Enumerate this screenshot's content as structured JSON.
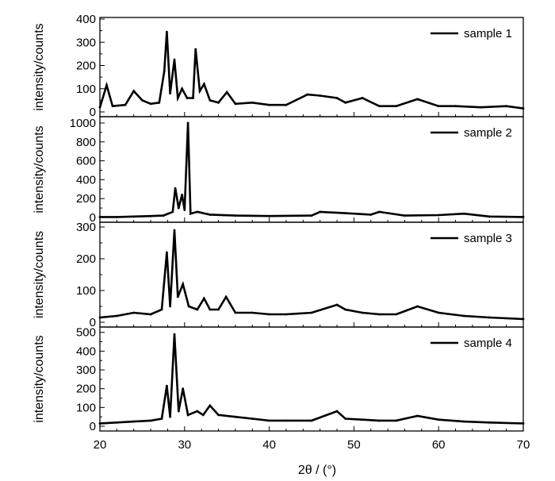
{
  "chart_data": [
    {
      "type": "line",
      "legend_position": "top-right",
      "ylabel": "intensity/counts",
      "xlim": [
        20,
        70
      ],
      "ylim": [
        0,
        400
      ],
      "yticks": [
        0,
        100,
        200,
        300,
        400
      ],
      "series": [
        {
          "name": "sample 1",
          "x": [
            20,
            20.8,
            21.5,
            23,
            24,
            25,
            26,
            27,
            27.6,
            27.9,
            28.3,
            28.8,
            29.2,
            29.7,
            30.3,
            31.0,
            31.3,
            31.8,
            32.3,
            33,
            34,
            35,
            36,
            38,
            40,
            42,
            44.5,
            46,
            48,
            49,
            51,
            53,
            55,
            57.5,
            60,
            62,
            65,
            68,
            70
          ],
          "y": [
            20,
            115,
            25,
            30,
            90,
            50,
            35,
            40,
            175,
            345,
            80,
            225,
            60,
            100,
            60,
            60,
            270,
            90,
            120,
            50,
            40,
            85,
            35,
            40,
            30,
            30,
            75,
            70,
            60,
            40,
            60,
            25,
            25,
            55,
            25,
            25,
            20,
            25,
            15
          ]
        }
      ]
    },
    {
      "type": "line",
      "legend_position": "top-right",
      "ylabel": "intensity/counts",
      "xlim": [
        20,
        70
      ],
      "ylim": [
        0,
        1050
      ],
      "yticks": [
        0,
        200,
        400,
        600,
        800,
        1000
      ],
      "series": [
        {
          "name": "sample 2",
          "x": [
            20,
            22,
            24,
            26,
            27.5,
            28.6,
            28.9,
            29.3,
            29.7,
            30.0,
            30.4,
            30.7,
            31.5,
            33,
            36,
            40,
            45,
            46,
            49,
            52,
            53,
            56,
            60,
            63,
            66,
            70
          ],
          "y": [
            5,
            5,
            10,
            15,
            20,
            60,
            310,
            100,
            240,
            80,
            1000,
            40,
            60,
            30,
            20,
            15,
            20,
            60,
            45,
            30,
            60,
            20,
            25,
            40,
            10,
            5
          ]
        }
      ]
    },
    {
      "type": "line",
      "legend_position": "top-right",
      "ylabel": "intensity/counts",
      "xlim": [
        20,
        70
      ],
      "ylim": [
        0,
        310
      ],
      "yticks": [
        0,
        100,
        200,
        300
      ],
      "series": [
        {
          "name": "sample 3",
          "x": [
            20,
            22,
            24,
            26,
            27.3,
            27.9,
            28.3,
            28.8,
            29.2,
            29.8,
            30.5,
            31.5,
            32.3,
            33,
            34,
            34.9,
            36,
            38,
            40,
            42,
            45,
            48,
            49,
            51,
            53,
            55,
            57.5,
            60,
            63,
            66,
            70
          ],
          "y": [
            15,
            20,
            30,
            25,
            40,
            220,
            50,
            290,
            80,
            120,
            50,
            40,
            75,
            40,
            40,
            80,
            30,
            30,
            25,
            25,
            30,
            55,
            40,
            30,
            25,
            25,
            50,
            30,
            20,
            15,
            10
          ]
        }
      ]
    },
    {
      "type": "line",
      "legend_position": "top-right",
      "xlabel": "2θ / (°)",
      "ylabel": "intensity/counts",
      "xlim": [
        20,
        70
      ],
      "ylim": [
        0,
        520
      ],
      "yticks": [
        0,
        100,
        200,
        300,
        400,
        500
      ],
      "xticks": [
        20,
        30,
        40,
        50,
        60,
        70
      ],
      "series": [
        {
          "name": "sample 4",
          "x": [
            20,
            22,
            24,
            26,
            27.3,
            27.9,
            28.3,
            28.8,
            29.3,
            29.8,
            30.4,
            31.5,
            32.2,
            33,
            34,
            36,
            38,
            40,
            42,
            45,
            48,
            49,
            51,
            53,
            55,
            57.5,
            60,
            63,
            66,
            70
          ],
          "y": [
            15,
            20,
            25,
            30,
            40,
            215,
            50,
            490,
            80,
            200,
            60,
            80,
            60,
            110,
            60,
            50,
            40,
            30,
            30,
            30,
            80,
            40,
            35,
            30,
            30,
            55,
            35,
            25,
            20,
            15
          ]
        }
      ]
    }
  ]
}
